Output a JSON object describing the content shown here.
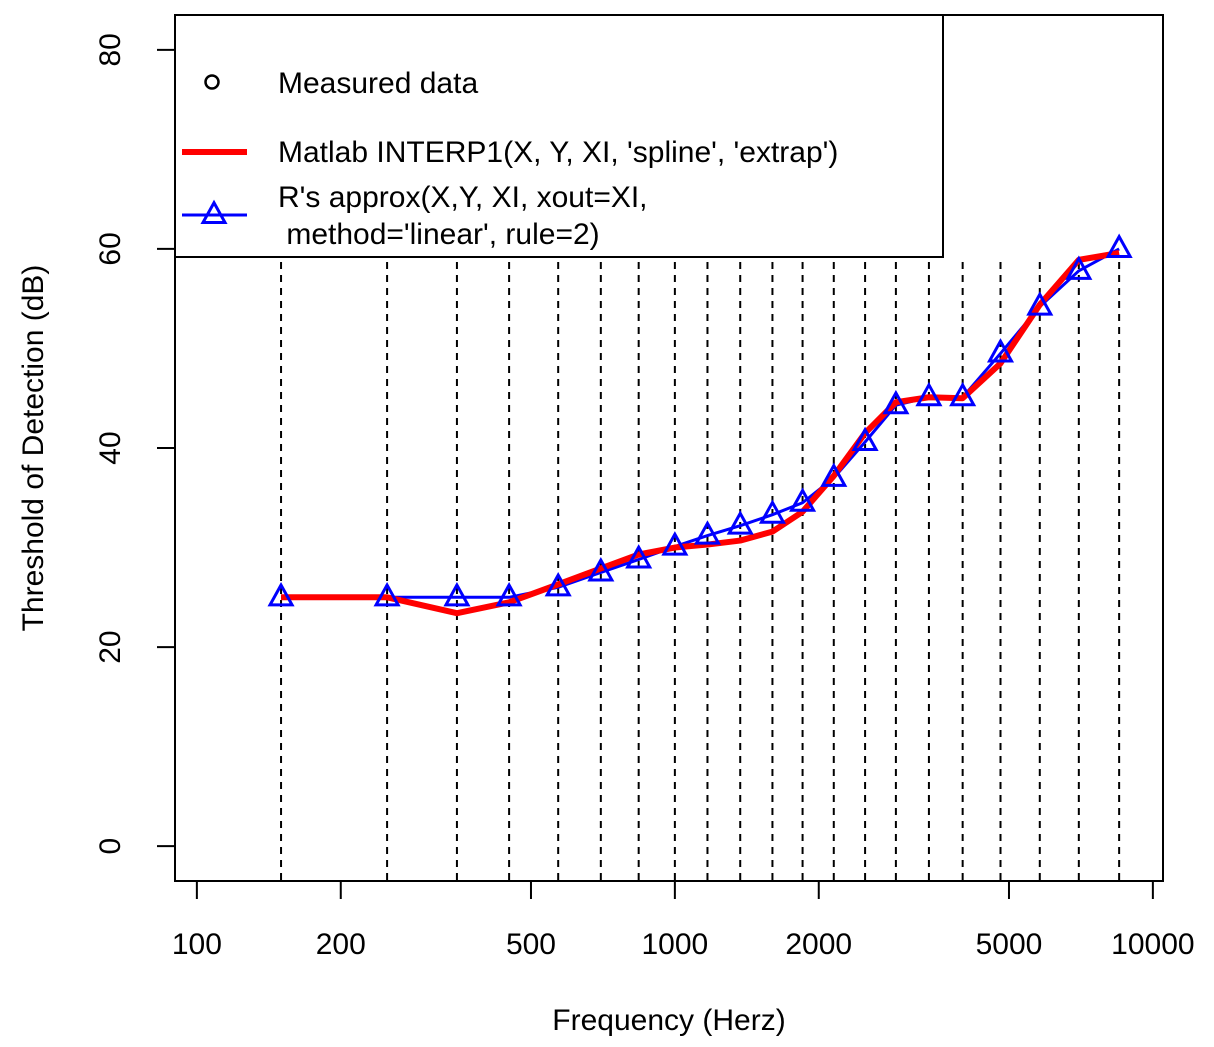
{
  "chart_data": {
    "type": "line",
    "xlabel": "Frequency (Herz)",
    "ylabel": "Threshold of Detection (dB)",
    "x_scale": "log",
    "xlim": [
      90,
      10500
    ],
    "ylim": [
      -3.5,
      83.5
    ],
    "x_ticks": [
      100,
      200,
      500,
      1000,
      2000,
      5000,
      10000
    ],
    "x_tick_labels": [
      "100",
      "200",
      "500",
      "1000",
      "2000",
      "5000",
      "10000"
    ],
    "y_ticks": [
      0,
      20,
      40,
      60,
      80
    ],
    "y_tick_labels": [
      "0",
      "20",
      "40",
      "60",
      "80"
    ],
    "vlines": [
      150,
      250,
      350,
      450,
      570,
      700,
      840,
      1000,
      1170,
      1370,
      1600,
      1850,
      2150,
      2500,
      2900,
      3400,
      4000,
      4800,
      5800,
      7000,
      8500
    ],
    "grid": false,
    "legend_position": "top-left",
    "legend": [
      {
        "label": "Measured data",
        "marker": "circle",
        "color": "#000000"
      },
      {
        "label": "Matlab INTERP1(X, Y, XI, 'spline', 'extrap')",
        "line": "solid",
        "color": "#ff0000"
      },
      {
        "label": "R's approx(X,Y, XI, xout=XI,",
        "label2": " method='linear', rule=2)",
        "marker": "triangle",
        "line": "solid",
        "color": "#0000ff"
      }
    ],
    "series": [
      {
        "name": "Matlab INTERP1(X, Y, XI, 'spline', 'extrap')",
        "color": "#ff0000",
        "x": [
          150,
          250,
          350,
          450,
          570,
          700,
          840,
          1000,
          1170,
          1370,
          1600,
          1850,
          2150,
          2500,
          2900,
          3400,
          4000,
          4800,
          5800,
          7000,
          8500
        ],
        "y": [
          25,
          25,
          23.4,
          24.5,
          26.3,
          27.9,
          29.3,
          30,
          30.3,
          30.7,
          31.6,
          33.6,
          37.2,
          41.5,
          44.6,
          45.1,
          45.0,
          48.5,
          54.4,
          58.9,
          59.6
        ]
      },
      {
        "name": "R's approx(X,Y, XI, xout=XI,\n method='linear', rule=2)",
        "color": "#0000ff",
        "x": [
          150,
          250,
          350,
          450,
          570,
          700,
          840,
          1000,
          1170,
          1370,
          1600,
          1850,
          2150,
          2500,
          2900,
          3400,
          4000,
          4800,
          5800,
          7000,
          8500
        ],
        "y": [
          25,
          25,
          25,
          25,
          26,
          27.5,
          28.8,
          30.1,
          31.2,
          32.2,
          33.3,
          34.5,
          37.0,
          40.6,
          44.3,
          45.1,
          45.1,
          49.5,
          54.2,
          57.8,
          60.0
        ]
      }
    ]
  }
}
